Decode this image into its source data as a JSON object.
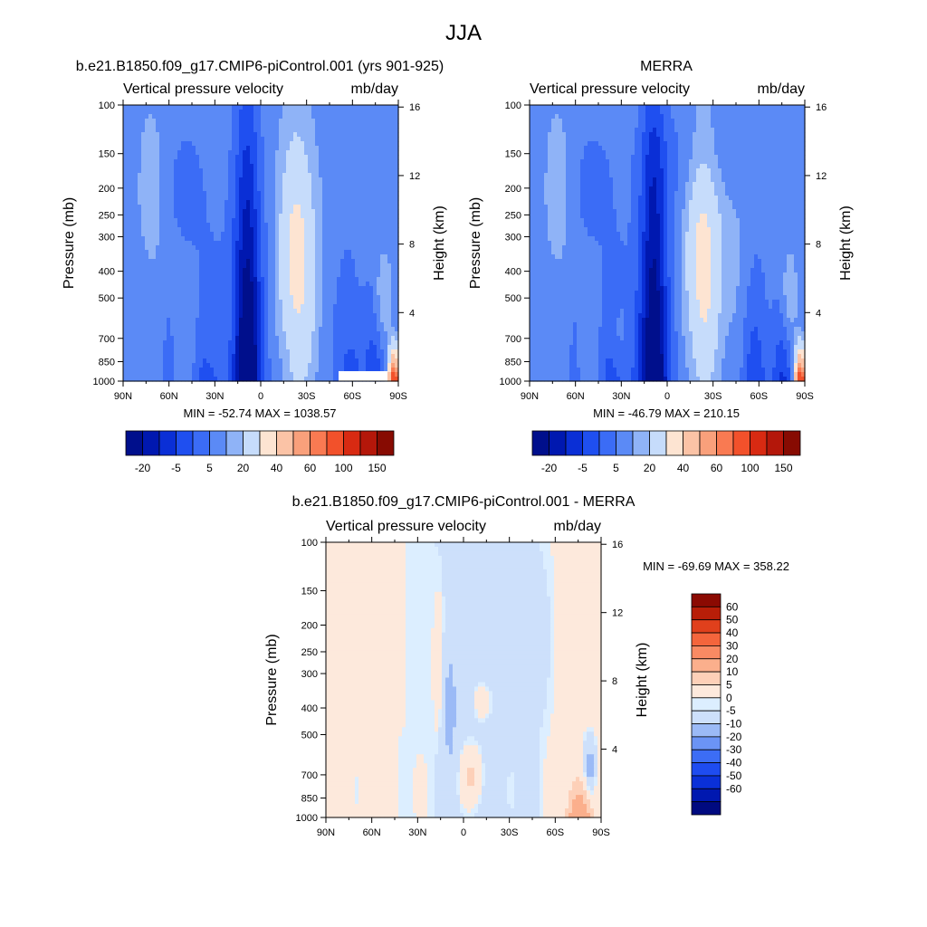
{
  "figure": {
    "title": "JJA"
  },
  "colors": {
    "abs_levels": [
      "#000f8c",
      "#0018b0",
      "#0a2fd6",
      "#1f4ff0",
      "#3b6cf6",
      "#5b8af6",
      "#8fb3f7",
      "#c6dcfb",
      "#fde4d2",
      "#fbc3a6",
      "#f9a07b",
      "#f97a52",
      "#f2512b",
      "#d82a12",
      "#b4170a",
      "#870b02"
    ],
    "diff_levels": [
      "#000a80",
      "#0018b0",
      "#0a30d8",
      "#1e4cf0",
      "#3c6df5",
      "#6b94f5",
      "#9bbaf6",
      "#cde0fb",
      "#dceeff",
      "#fde9dc",
      "#fdd0b8",
      "#fbaf8c",
      "#f98a63",
      "#f4653c",
      "#e0401c",
      "#b81e08",
      "#8b0a02"
    ]
  },
  "panels": {
    "model": {
      "title": "b.e21.B1850.f09_g17.CMIP6-piControl.001 (yrs 901-925)",
      "left_label": "Vertical pressure velocity",
      "right_label": "mb/day",
      "stats": "MIN = -52.74  MAX = 1038.57"
    },
    "obs": {
      "title": "MERRA",
      "left_label": "Vertical pressure velocity",
      "right_label": "mb/day",
      "stats": "MIN = -46.79  MAX = 210.15"
    },
    "diff": {
      "title": "b.e21.B1850.f09_g17.CMIP6-piControl.001 - MERRA",
      "left_label": "Vertical pressure velocity",
      "right_label": "mb/day",
      "stats": "MIN = -69.69  MAX = 358.22"
    }
  },
  "chart_data": [
    {
      "type": "heatmap",
      "title": "b.e21.B1850.f09_g17.CMIP6-piControl.001 (yrs 901-925)",
      "xlabel": "",
      "ylabel": "Pressure (mb)",
      "y2label": "Height (km)",
      "x_ticks": [
        "90N",
        "60N",
        "30N",
        "0",
        "30S",
        "60S",
        "90S"
      ],
      "y_ticks": [
        "100",
        "150",
        "200",
        "250",
        "300",
        "400",
        "500",
        "700",
        "850",
        "1000"
      ],
      "y2_ticks": [
        "16",
        "12",
        "8",
        "4"
      ],
      "colorbar_labels": [
        "-20",
        "-5",
        "5",
        "20",
        "40",
        "60",
        "100",
        "150"
      ],
      "min": -52.74,
      "max": 1038.57
    },
    {
      "type": "heatmap",
      "title": "MERRA",
      "xlabel": "",
      "ylabel": "Pressure (mb)",
      "y2label": "Height (km)",
      "x_ticks": [
        "90N",
        "60N",
        "30N",
        "0",
        "30S",
        "60S",
        "90S"
      ],
      "y_ticks": [
        "100",
        "150",
        "200",
        "250",
        "300",
        "400",
        "500",
        "700",
        "850",
        "1000"
      ],
      "y2_ticks": [
        "16",
        "12",
        "8",
        "4"
      ],
      "colorbar_labels": [
        "-20",
        "-5",
        "5",
        "20",
        "40",
        "60",
        "100",
        "150"
      ],
      "min": -46.79,
      "max": 210.15
    },
    {
      "type": "heatmap",
      "title": "b.e21.B1850.f09_g17.CMIP6-piControl.001 - MERRA",
      "xlabel": "",
      "ylabel": "Pressure (mb)",
      "y2label": "Height (km)",
      "x_ticks": [
        "90N",
        "60N",
        "30N",
        "0",
        "30S",
        "60S",
        "90S"
      ],
      "y_ticks": [
        "100",
        "150",
        "200",
        "250",
        "300",
        "400",
        "500",
        "700",
        "850",
        "1000"
      ],
      "y2_ticks": [
        "16",
        "12",
        "8",
        "4"
      ],
      "colorbar_labels": [
        "60",
        "50",
        "40",
        "30",
        "20",
        "10",
        "5",
        "0",
        "-5",
        "-10",
        "-20",
        "-30",
        "-40",
        "-50",
        "-60"
      ],
      "min": -69.69,
      "max": 358.22
    }
  ]
}
